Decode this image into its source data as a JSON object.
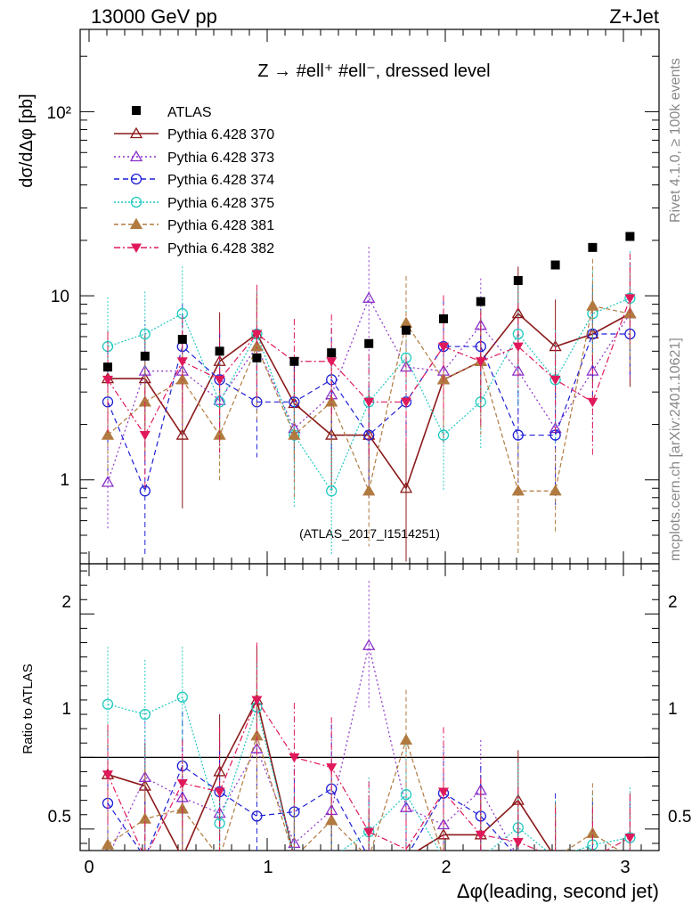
{
  "header": {
    "left": "13000 GeV pp",
    "right": "Z+Jet"
  },
  "side_labels": {
    "rivet": "Rivet 4.1.0, ≥ 100k events",
    "mcplots": "mcplots.cern.ch [arXiv:2401.10621]"
  },
  "chart_data": {
    "type": "scatter",
    "title": "Z → #ell⁺ #ell⁻, dressed level",
    "watermark": "(ATLAS_2017_I1514251)",
    "xlabel": "Δφ(leading, second jet)",
    "ylabel": "dσ/dΔφ [pb]",
    "ratio_ylabel": "Ratio to ATLAS",
    "xlim": [
      -0.05,
      3.2
    ],
    "ylim": [
      0.35,
      280
    ],
    "yscale": "log",
    "ratio_ylim": [
      0.35,
      2.35
    ],
    "x_ticks": [
      "0",
      "1",
      "2",
      "3"
    ],
    "y_ticks": [
      "1",
      "10",
      "10²"
    ],
    "ratio_y_ticks": [
      "0.5",
      "1",
      "2"
    ],
    "x": [
      0.105,
      0.314,
      0.524,
      0.733,
      0.942,
      1.152,
      1.361,
      1.571,
      1.78,
      1.99,
      2.199,
      2.409,
      2.618,
      2.827,
      3.037
    ],
    "reference": {
      "name": "ATLAS",
      "color": "#000000",
      "values": [
        4.1,
        4.7,
        5.8,
        5.0,
        4.6,
        4.4,
        4.9,
        5.5,
        6.5,
        7.5,
        9.3,
        12.1,
        14.7,
        18.3,
        21.0
      ]
    },
    "series": [
      {
        "name": "Pythia 6.428 370",
        "color": "#8b1a1a",
        "marker": "triangle-open",
        "dash": "",
        "values": [
          3.55,
          3.55,
          1.75,
          4.4,
          6.2,
          2.6,
          1.75,
          1.75,
          0.9,
          3.5,
          4.4,
          8.0,
          5.3,
          6.2,
          8.0
        ],
        "ratio": [
          0.88,
          0.8,
          0.3,
          0.9,
          1.4,
          0.3,
          0.3,
          0.3,
          0.3,
          0.46,
          0.46,
          0.7,
          0.3,
          0.3,
          0.3
        ]
      },
      {
        "name": "Pythia 6.428 373",
        "color": "#8b2fc9",
        "marker": "triangle-open",
        "dash": "2,3",
        "values": [
          0.97,
          3.9,
          3.9,
          2.7,
          5.3,
          1.9,
          2.9,
          9.7,
          4.1,
          3.9,
          6.9,
          3.9,
          1.9,
          3.9,
          8.0
        ],
        "ratio": [
          0.3,
          0.86,
          0.72,
          0.61,
          1.06,
          0.4,
          0.63,
          1.78,
          0.65,
          0.53,
          0.77,
          0.3,
          0.3,
          0.3,
          0.3
        ]
      },
      {
        "name": "Pythia 6.428 374",
        "color": "#1f1fd6",
        "marker": "circle-open",
        "dash": "6,4",
        "values": [
          2.65,
          0.87,
          5.3,
          3.5,
          2.65,
          2.65,
          3.5,
          1.75,
          2.65,
          5.3,
          5.3,
          1.75,
          1.75,
          6.2,
          6.2
        ],
        "ratio": [
          0.68,
          0.3,
          0.94,
          0.76,
          0.59,
          0.62,
          0.78,
          0.3,
          0.3,
          0.75,
          0.59,
          0.3,
          0.3,
          0.3,
          0.3
        ]
      },
      {
        "name": "Pythia 6.428 375",
        "color": "#20c8c0",
        "marker": "circle-open",
        "dash": "2,2",
        "values": [
          5.3,
          6.2,
          8.0,
          2.65,
          6.2,
          1.75,
          0.87,
          2.65,
          4.6,
          1.75,
          2.65,
          6.2,
          3.5,
          8.0,
          9.7
        ],
        "ratio": [
          1.37,
          1.3,
          1.42,
          0.54,
          1.35,
          0.3,
          0.3,
          0.48,
          0.74,
          0.3,
          0.3,
          0.51,
          0.3,
          0.39,
          0.44
        ]
      },
      {
        "name": "Pythia 6.428 381",
        "color": "#b07a40",
        "marker": "triangle-filled",
        "dash": "5,3",
        "values": [
          1.75,
          2.65,
          3.5,
          1.75,
          5.3,
          1.75,
          2.65,
          0.87,
          7.1,
          3.5,
          4.4,
          0.87,
          0.87,
          8.8,
          8.0
        ],
        "ratio": [
          0.39,
          0.57,
          0.64,
          0.3,
          1.15,
          0.3,
          0.56,
          0.3,
          1.12,
          0.3,
          0.3,
          0.3,
          0.3,
          0.47,
          0.3
        ]
      },
      {
        "name": "Pythia 6.428 382",
        "color": "#e0195a",
        "marker": "triangle-down-filled",
        "dash": "7,3,2,3",
        "values": [
          3.5,
          1.75,
          4.4,
          3.5,
          6.2,
          4.4,
          4.4,
          2.65,
          2.65,
          5.3,
          4.4,
          5.3,
          3.5,
          2.65,
          9.7
        ],
        "ratio": [
          0.88,
          0.3,
          0.82,
          0.76,
          1.4,
          1.0,
          0.93,
          0.48,
          0.36,
          0.76,
          0.46,
          0.41,
          0.3,
          0.3,
          0.44
        ]
      }
    ]
  }
}
